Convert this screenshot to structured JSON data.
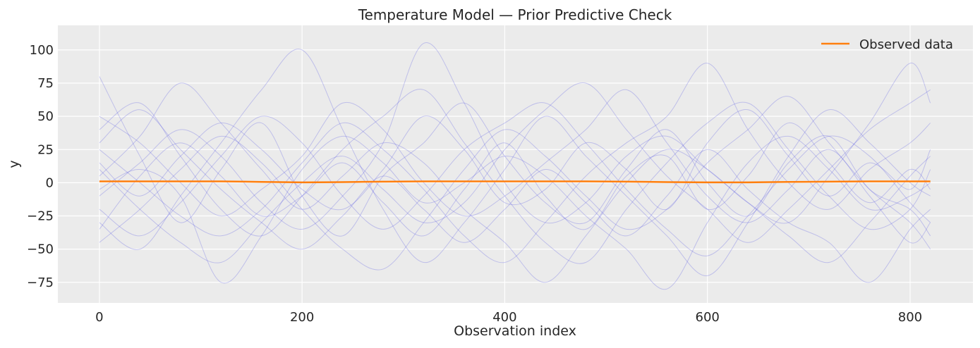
{
  "chart_data": {
    "type": "line",
    "title": "Temperature Model — Prior Predictive Check",
    "xlabel": "Observation index",
    "ylabel": "y",
    "xlim": [
      -41,
      862
    ],
    "ylim": [
      -90.5,
      118.5
    ],
    "xticks": [
      0,
      200,
      400,
      600,
      800
    ],
    "xtick_labels": [
      "0",
      "200",
      "400",
      "600",
      "800"
    ],
    "yticks": [
      -75,
      -50,
      -25,
      0,
      25,
      50,
      75,
      100
    ],
    "ytick_labels": [
      "−75",
      "−50",
      "−25",
      "0",
      "25",
      "50",
      "75",
      "100"
    ],
    "grid": true,
    "legend": {
      "placement": "top-right",
      "entries": [
        "Observed data"
      ]
    },
    "colors": {
      "observed": "#ff7f0e",
      "prior": "#5a5ae6",
      "background": "#ebebeb",
      "grid": "#ffffff"
    },
    "x": [
      0,
      40,
      80,
      120,
      160,
      200,
      240,
      280,
      320,
      360,
      400,
      440,
      480,
      520,
      560,
      600,
      640,
      680,
      720,
      760,
      800,
      820
    ],
    "observed": {
      "name": "Observed data",
      "values": [
        1,
        1,
        1,
        1,
        0.6,
        0.3,
        0.5,
        0.8,
        1,
        1,
        1,
        1,
        1,
        0.8,
        0.5,
        0.3,
        0.3,
        0.6,
        0.8,
        1,
        1,
        1
      ]
    },
    "prior_samples": [
      [
        80,
        20,
        -30,
        10,
        45,
        -10,
        -40,
        5,
        30,
        60,
        20,
        -15,
        -30,
        10,
        40,
        0,
        -25,
        15,
        35,
        -5,
        -20,
        -40
      ],
      [
        -30,
        -50,
        -10,
        30,
        70,
        100,
        40,
        -20,
        -60,
        -30,
        10,
        50,
        20,
        -10,
        -40,
        -70,
        -30,
        20,
        55,
        30,
        0,
        -10
      ],
      [
        40,
        60,
        20,
        -20,
        -40,
        -10,
        25,
        50,
        70,
        30,
        -10,
        -45,
        -60,
        -20,
        15,
        45,
        60,
        25,
        -10,
        -35,
        -20,
        10
      ],
      [
        10,
        -20,
        -45,
        -60,
        -30,
        0,
        20,
        -5,
        -30,
        -15,
        25,
        55,
        75,
        40,
        5,
        -20,
        -45,
        -20,
        10,
        40,
        60,
        70
      ],
      [
        -10,
        15,
        40,
        20,
        -15,
        -35,
        -10,
        30,
        105,
        60,
        0,
        -30,
        -15,
        20,
        35,
        10,
        -15,
        -40,
        -60,
        -30,
        5,
        20
      ],
      [
        25,
        0,
        -25,
        -40,
        -20,
        15,
        45,
        25,
        -5,
        -40,
        -60,
        -30,
        5,
        30,
        50,
        90,
        40,
        0,
        -20,
        10,
        30,
        45
      ],
      [
        -45,
        -20,
        10,
        35,
        15,
        -20,
        -50,
        -65,
        -30,
        10,
        40,
        20,
        -10,
        -35,
        -20,
        15,
        40,
        65,
        30,
        -5,
        -30,
        -50
      ],
      [
        5,
        35,
        75,
        45,
        10,
        -20,
        5,
        30,
        15,
        -20,
        -45,
        -75,
        -40,
        0,
        25,
        10,
        -15,
        -30,
        5,
        45,
        90,
        60
      ],
      [
        -20,
        -40,
        -15,
        20,
        50,
        30,
        -10,
        -35,
        -10,
        25,
        45,
        60,
        30,
        -5,
        -35,
        -55,
        -25,
        10,
        35,
        20,
        -15,
        -30
      ],
      [
        50,
        30,
        0,
        -25,
        -5,
        20,
        60,
        40,
        0,
        -25,
        -10,
        15,
        40,
        70,
        30,
        -10,
        -30,
        -5,
        25,
        -10,
        -45,
        -30
      ],
      [
        -5,
        10,
        -10,
        -75,
        -40,
        10,
        35,
        15,
        -15,
        0,
        20,
        5,
        -25,
        -50,
        -80,
        -30,
        15,
        35,
        10,
        -20,
        -10,
        0
      ],
      [
        15,
        -10,
        20,
        45,
        25,
        -5,
        -20,
        10,
        50,
        25,
        -15,
        -5,
        30,
        10,
        -20,
        30,
        55,
        20,
        -10,
        15,
        -5,
        25
      ],
      [
        30,
        55,
        25,
        -5,
        -30,
        -50,
        -25,
        5,
        -20,
        -45,
        -20,
        10,
        -15,
        -40,
        -10,
        25,
        -5,
        -30,
        -45,
        -75,
        -35,
        -20
      ],
      [
        -35,
        5,
        30,
        5,
        -25,
        -10,
        15,
        -15,
        -40,
        -5,
        30,
        -10,
        -35,
        5,
        20,
        -20,
        5,
        45,
        15,
        -15,
        10,
        -5
      ]
    ]
  }
}
